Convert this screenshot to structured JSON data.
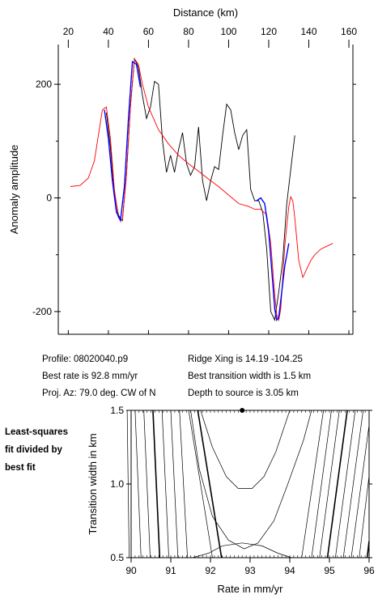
{
  "info": {
    "profile": "Profile: 08020040.p9",
    "best_rate": "Best rate is 92.8 mm/yr",
    "proj_az": "Proj. Az: 79.0 deg. CW of N",
    "ridge_xing": "Ridge Xing is 14.19 -104.25",
    "best_width": "Best transition width is 1.5 km",
    "depth": "Depth to source is   3.05 km"
  },
  "side_label": [
    "Least-squares",
    "fit divided by",
    "best fit"
  ],
  "colors": {
    "observed": "#000000",
    "model": "#ff0000",
    "fit_section": "#0000ff",
    "axes": "#000000"
  },
  "chart_data": [
    {
      "type": "line",
      "xlabel": "Distance (km)",
      "ylabel": "Anomaly amplitude",
      "xlim": [
        15,
        162
      ],
      "ylim": [
        -240,
        270
      ],
      "xticks": [
        20,
        40,
        60,
        80,
        100,
        120,
        140,
        160
      ],
      "yticks": [
        -200,
        0,
        200
      ],
      "series": [
        {
          "role": "observed",
          "color": "#000000",
          "x": [
            39,
            41,
            43,
            45,
            47,
            49,
            51,
            53,
            55,
            57,
            59,
            61,
            63,
            65,
            67,
            69,
            71,
            73,
            75,
            77,
            79,
            81,
            83,
            85,
            87,
            89,
            91,
            93,
            95,
            97,
            99,
            101,
            103,
            105,
            107,
            109,
            111,
            113,
            115,
            117,
            119,
            121,
            123,
            125,
            127,
            129,
            131,
            133
          ],
          "y": [
            150,
            90,
            10,
            -30,
            -40,
            40,
            160,
            245,
            230,
            180,
            140,
            160,
            205,
            200,
            100,
            45,
            75,
            45,
            85,
            115,
            60,
            40,
            55,
            125,
            30,
            -5,
            30,
            55,
            50,
            110,
            165,
            155,
            115,
            85,
            110,
            120,
            15,
            -5,
            -5,
            -25,
            -90,
            -200,
            -215,
            -165,
            -110,
            -10,
            50,
            110
          ]
        },
        {
          "role": "model",
          "color": "#ff0000",
          "x": [
            21,
            26,
            30,
            33,
            35,
            37,
            39,
            41,
            43,
            45,
            47,
            49,
            51,
            53,
            55,
            57,
            60,
            65,
            70,
            75,
            80,
            85,
            90,
            95,
            100,
            105,
            110,
            113,
            116,
            119,
            121,
            123,
            124,
            125,
            126,
            127,
            128,
            129,
            130,
            131,
            132,
            133,
            135,
            137,
            139,
            141,
            143,
            146,
            149,
            152
          ],
          "y": [
            20,
            22,
            35,
            65,
            110,
            155,
            160,
            105,
            15,
            -35,
            -40,
            40,
            160,
            245,
            235,
            200,
            160,
            120,
            95,
            75,
            60,
            47,
            33,
            20,
            5,
            -10,
            -15,
            -20,
            -20,
            -30,
            -80,
            -170,
            -205,
            -215,
            -195,
            -140,
            -85,
            -50,
            -15,
            2,
            -5,
            -35,
            -110,
            -140,
            -125,
            -110,
            -100,
            -90,
            -85,
            -80
          ]
        },
        {
          "role": "fit-section",
          "color": "#0000ff",
          "x": [
            38,
            40,
            42,
            44,
            46,
            48,
            50,
            52,
            54,
            56,
            114,
            116,
            118,
            120,
            122,
            123,
            124,
            125,
            126,
            128,
            130
          ],
          "y": [
            155,
            105,
            30,
            -25,
            -40,
            20,
            140,
            240,
            235,
            195,
            -5,
            0,
            -10,
            -60,
            -150,
            -195,
            -215,
            -210,
            -180,
            -120,
            -80
          ]
        }
      ]
    },
    {
      "type": "contour",
      "xlabel": "Rate in mm/yr",
      "ylabel": "Transition width in km",
      "xlim": [
        90,
        96
      ],
      "ylim": [
        0.5,
        1.5
      ],
      "xticks": [
        90,
        91,
        92,
        93,
        94,
        95,
        96
      ],
      "yticks": [
        0.5,
        1.0,
        1.5
      ],
      "best_fit": {
        "rate": 92.8,
        "width": 1.5
      },
      "left_lines_bottom_x": [
        89.95,
        90.25,
        90.48,
        90.72,
        90.95,
        91.18,
        91.42
      ],
      "left_lines_top_x": [
        89.9,
        90.1,
        90.32,
        90.55,
        90.78,
        91.0,
        91.22,
        91.45,
        91.68
      ],
      "right_lines_bottom_x": [
        94.3,
        94.55,
        94.75,
        94.95,
        95.15,
        95.35,
        95.55,
        95.75,
        95.95
      ],
      "right_lines_top_x": [
        94.85,
        95.05,
        95.25,
        95.45,
        95.65,
        95.85,
        96.05
      ],
      "bold_levels": [
        3,
        8
      ]
    }
  ]
}
